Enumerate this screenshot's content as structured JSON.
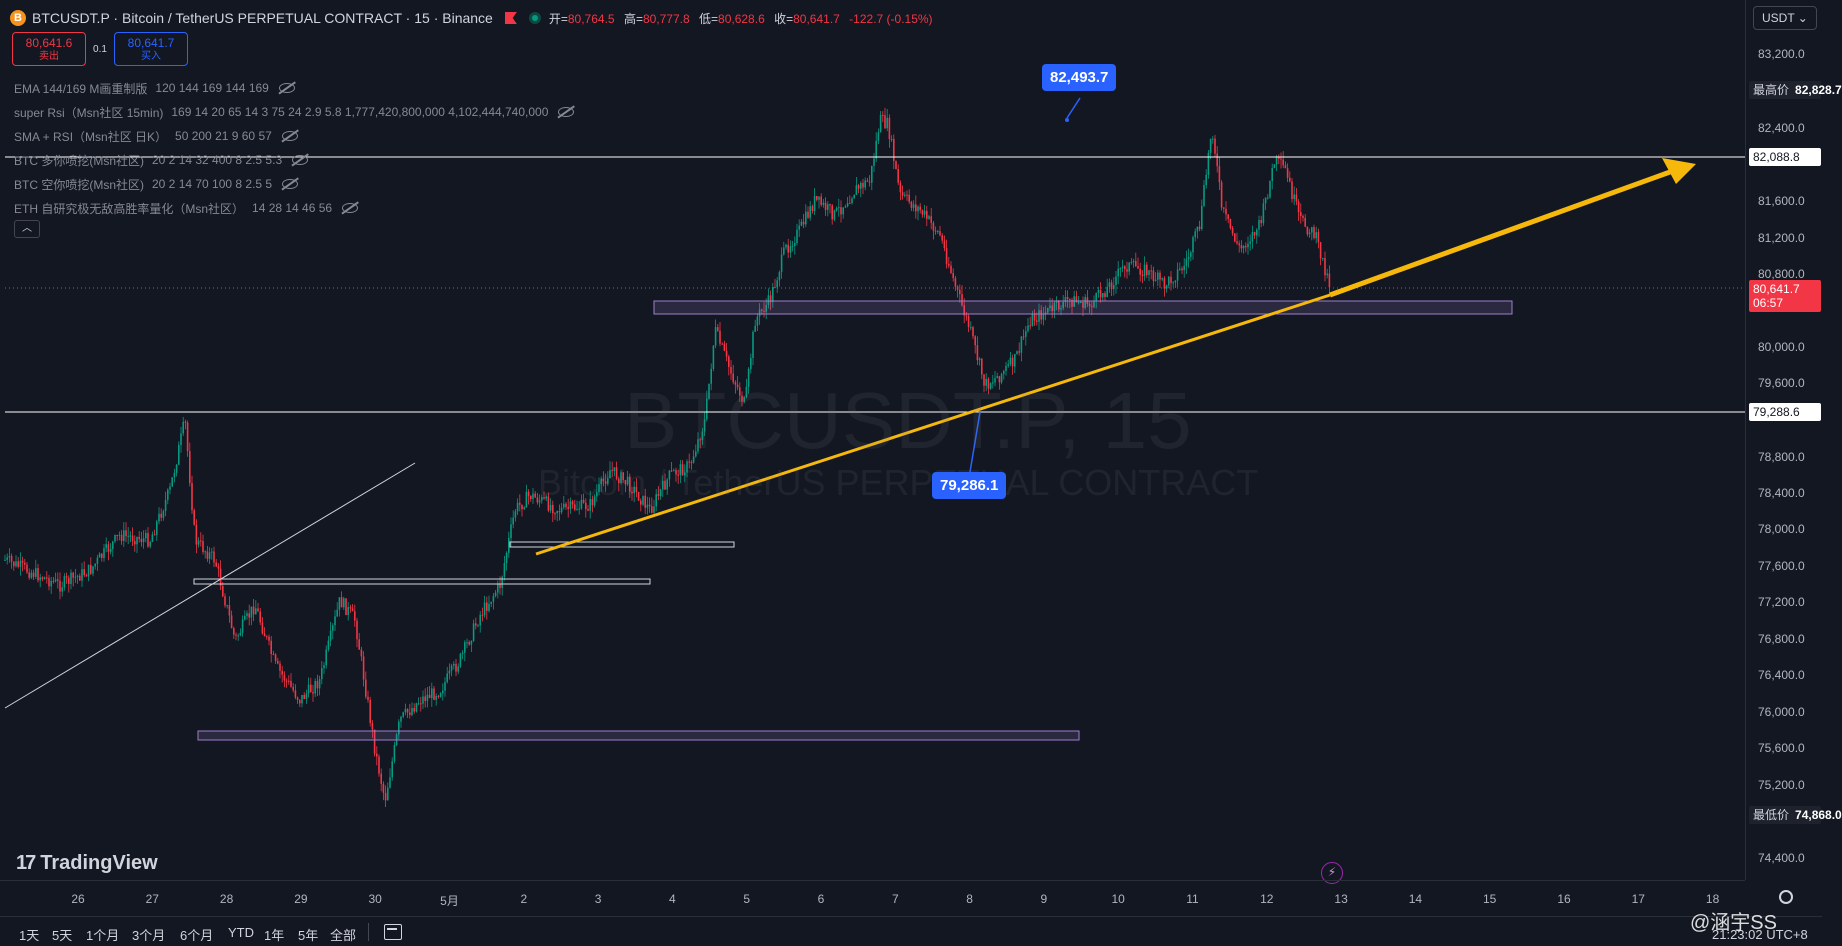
{
  "header": {
    "title": "BTCUSDT.P · Bitcoin / TetherUS PERPETUAL CONTRACT · 15 · Binance",
    "logo_letter": "B",
    "open_label": "开=",
    "open": "80,764.5",
    "high_label": "高=",
    "high": "80,777.8",
    "low_label": "低=",
    "low": "80,628.6",
    "close_label": "收=",
    "close": "80,641.7",
    "change": "-122.7 (-0.15%)"
  },
  "trade": {
    "sell_price": "80,641.6",
    "sell_label": "卖出",
    "spread": "0.1",
    "buy_price": "80,641.7",
    "buy_label": "买入"
  },
  "indicators": [
    {
      "name": "EMA 144/169 M画重制版",
      "params": "120 144 169 144 169"
    },
    {
      "name": "super Rsi（Msn社区 15min)",
      "params": "169 14 20 65 14 3 75 24 2.9 5.8 1,777,420,800,000 4,102,444,740,000"
    },
    {
      "name": "SMA + RSI（Msn社区 日K）",
      "params": "50 200 21 9 60 57"
    },
    {
      "name": "BTC 多你喷挖(Msn社区)",
      "params": "20 2 14 32 400 8 2.5 5.3"
    },
    {
      "name": "BTC 空你喷挖(Msn社区)",
      "params": "20 2 14 70 100 8 2.5 5"
    },
    {
      "name": "ETH 自研究极无敌高胜率量化（Msn社区）",
      "params": "14 28 14 46 56"
    }
  ],
  "collapse_symbol": "︿",
  "watermark": {
    "symbol": "BTCUSDT.P, 15",
    "description": "Bitcoin / TetherUS PERPETUAL CONTRACT"
  },
  "callouts": {
    "upper": "82,493.7",
    "lower": "79,286.1"
  },
  "price_scale": {
    "currency": "USDT",
    "ticks": [
      "83,200.0",
      "82,400.0",
      "81,600.0",
      "81,200.0",
      "80,800.0",
      "80,000.0",
      "79,600.0",
      "78,800.0",
      "78,400.0",
      "78,000.0",
      "77,600.0",
      "77,200.0",
      "76,800.0",
      "76,400.0",
      "76,000.0",
      "75,600.0",
      "75,200.0",
      "74,400.0"
    ],
    "high_label": "最高价",
    "high_value": "82,828.7",
    "line_upper": "82,088.8",
    "line_lower": "79,288.6",
    "current_price": "80,641.7",
    "countdown": "06:57",
    "low_label": "最低价",
    "low_value": "74,868.0"
  },
  "time_axis": [
    "26",
    "27",
    "28",
    "29",
    "30",
    "5月",
    "2",
    "3",
    "4",
    "5",
    "6",
    "7",
    "8",
    "9",
    "10",
    "11",
    "12",
    "13",
    "14",
    "15",
    "16",
    "17",
    "18"
  ],
  "branding": {
    "tv_mark": "17",
    "tv_name": "TradingView"
  },
  "bottom_bar": {
    "ranges": [
      "1天",
      "5天",
      "1个月",
      "3个月",
      "6个月",
      "YTD",
      "1年",
      "5年",
      "全部"
    ],
    "clock": "21:23:02 UTC+8"
  },
  "overlay_watermark": "@涵宇SS",
  "colors": {
    "background": "#131722",
    "up": "#089981",
    "down": "#f23645",
    "trendline": "#f5b80b",
    "zone_border": "#9c7fc9",
    "callout": "#2962ff"
  }
}
